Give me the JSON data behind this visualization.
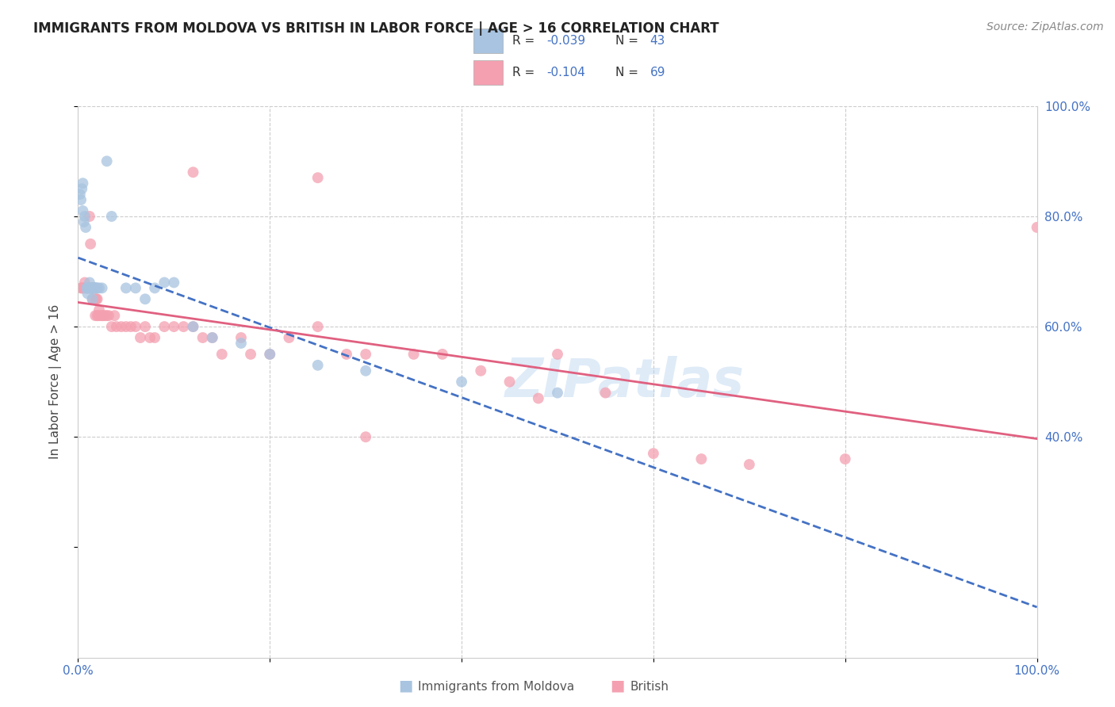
{
  "title": "IMMIGRANTS FROM MOLDOVA VS BRITISH IN LABOR FORCE | AGE > 16 CORRELATION CHART",
  "source": "Source: ZipAtlas.com",
  "ylabel": "In Labor Force | Age > 16",
  "xlim": [
    0.0,
    1.0
  ],
  "ylim": [
    0.0,
    1.0
  ],
  "legend_R1": "-0.039",
  "legend_N1": "43",
  "legend_R2": "-0.104",
  "legend_N2": "69",
  "color_moldova": "#a8c4e0",
  "color_british": "#f4a0b0",
  "color_line_moldova": "#4472c4",
  "color_line_british": "#e06080",
  "watermark": "ZIPatlas",
  "moldova_x": [
    0.002,
    0.003,
    0.004,
    0.005,
    0.005,
    0.006,
    0.007,
    0.008,
    0.009,
    0.01,
    0.01,
    0.011,
    0.012,
    0.013,
    0.013,
    0.014,
    0.015,
    0.015,
    0.016,
    0.016,
    0.017,
    0.018,
    0.018,
    0.019,
    0.02,
    0.022,
    0.025,
    0.03,
    0.035,
    0.05,
    0.06,
    0.07,
    0.08,
    0.09,
    0.1,
    0.12,
    0.14,
    0.17,
    0.2,
    0.25,
    0.3,
    0.4,
    0.5
  ],
  "moldova_y": [
    0.84,
    0.83,
    0.85,
    0.86,
    0.81,
    0.79,
    0.8,
    0.78,
    0.67,
    0.67,
    0.66,
    0.67,
    0.68,
    0.67,
    0.67,
    0.67,
    0.67,
    0.65,
    0.67,
    0.67,
    0.67,
    0.67,
    0.67,
    0.67,
    0.67,
    0.67,
    0.67,
    0.9,
    0.8,
    0.67,
    0.67,
    0.65,
    0.67,
    0.68,
    0.68,
    0.6,
    0.58,
    0.57,
    0.55,
    0.53,
    0.52,
    0.5,
    0.48
  ],
  "british_x": [
    0.003,
    0.004,
    0.005,
    0.006,
    0.007,
    0.008,
    0.009,
    0.01,
    0.011,
    0.012,
    0.013,
    0.014,
    0.015,
    0.015,
    0.016,
    0.017,
    0.018,
    0.018,
    0.019,
    0.02,
    0.02,
    0.021,
    0.022,
    0.023,
    0.025,
    0.026,
    0.028,
    0.03,
    0.032,
    0.035,
    0.038,
    0.04,
    0.045,
    0.05,
    0.055,
    0.06,
    0.065,
    0.07,
    0.075,
    0.08,
    0.09,
    0.1,
    0.11,
    0.12,
    0.13,
    0.14,
    0.15,
    0.17,
    0.18,
    0.2,
    0.22,
    0.25,
    0.28,
    0.3,
    0.35,
    0.38,
    0.42,
    0.45,
    0.48,
    0.5,
    0.55,
    0.6,
    0.65,
    0.7,
    0.8,
    1.0,
    0.12,
    0.25,
    0.3
  ],
  "british_y": [
    0.67,
    0.67,
    0.67,
    0.67,
    0.68,
    0.67,
    0.67,
    0.67,
    0.67,
    0.8,
    0.75,
    0.67,
    0.67,
    0.65,
    0.67,
    0.67,
    0.65,
    0.62,
    0.65,
    0.65,
    0.62,
    0.62,
    0.63,
    0.62,
    0.62,
    0.62,
    0.62,
    0.62,
    0.62,
    0.6,
    0.62,
    0.6,
    0.6,
    0.6,
    0.6,
    0.6,
    0.58,
    0.6,
    0.58,
    0.58,
    0.6,
    0.6,
    0.6,
    0.6,
    0.58,
    0.58,
    0.55,
    0.58,
    0.55,
    0.55,
    0.58,
    0.6,
    0.55,
    0.55,
    0.55,
    0.55,
    0.52,
    0.5,
    0.47,
    0.55,
    0.48,
    0.37,
    0.36,
    0.35,
    0.36,
    0.78,
    0.88,
    0.87,
    0.4
  ]
}
